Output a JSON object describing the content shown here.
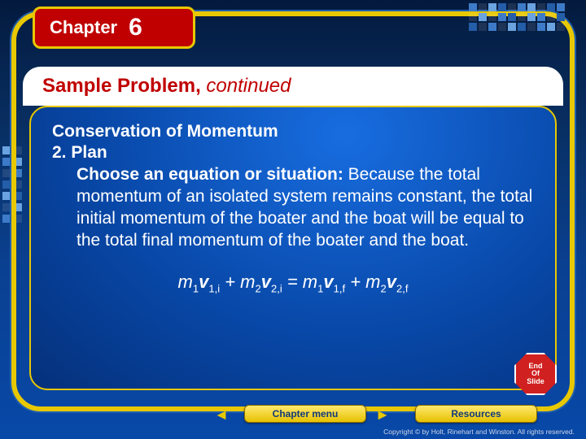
{
  "chapter": {
    "label": "Chapter",
    "number": "6"
  },
  "title": {
    "main": "Sample Problem",
    "sep": ", ",
    "cont": "continued"
  },
  "body": {
    "heading": "Conservation of Momentum",
    "plan_label": "2. Plan",
    "choose_bold": "Choose an equation or situation:",
    "paragraph": " Because the total momentum of an isolated system remains constant, the total initial momentum of the boater and the boat will be equal to the total final momentum of the boater and the boat."
  },
  "equation": {
    "m": "m",
    "v": "v",
    "plus": " + ",
    "eq": " = ",
    "s1": "1",
    "s2": "2",
    "si": "i",
    "sf": "f"
  },
  "end_badge": {
    "l1": "End",
    "l2": "Of",
    "l3": "Slide"
  },
  "buttons": {
    "menu": "Chapter menu",
    "resources": "Resources"
  },
  "nav": {
    "left": "◄",
    "right": "►"
  },
  "copyright": "Copyright © by Holt, Rinehart and Winston. All rights reserved.",
  "colors": {
    "accent_yellow": "#e8c800",
    "accent_red": "#c00000",
    "bg_blue_dark": "#05307a",
    "bg_blue_light": "#186de0"
  }
}
